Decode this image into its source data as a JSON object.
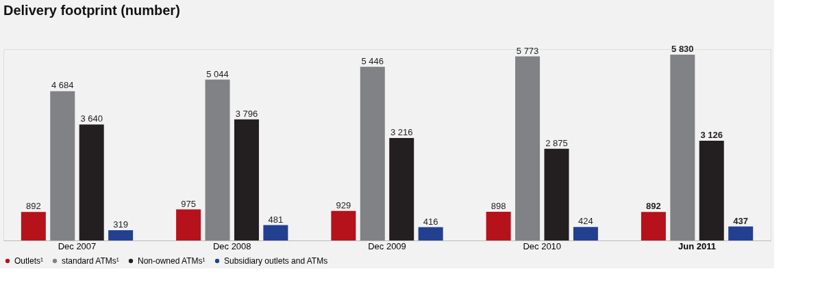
{
  "chart_data": {
    "type": "bar",
    "title": "Delivery footprint (number)",
    "categories": [
      "Dec 2007",
      "Dec 2008",
      "Dec 2009",
      "Dec 2010",
      "Jun 2011"
    ],
    "series": [
      {
        "name": "Outlets¹",
        "color": "#b5121b",
        "values": [
          892,
          975,
          929,
          898,
          892
        ]
      },
      {
        "name": "standard ATMs¹",
        "color": "#808285",
        "values": [
          4684,
          5044,
          5446,
          5773,
          5830
        ]
      },
      {
        "name": "Non-owned ATMs¹",
        "color": "#231f20",
        "values": [
          3640,
          3796,
          3216,
          2875,
          3126
        ]
      },
      {
        "name": "Subsidiary outlets and ATMs",
        "color": "#233f8f",
        "values": [
          319,
          481,
          416,
          424,
          437
        ]
      }
    ],
    "data_labels": true,
    "grid": false,
    "legend": "bottom left"
  }
}
